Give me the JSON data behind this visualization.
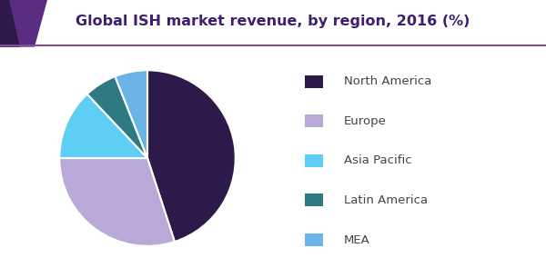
{
  "title": "Global ISH market revenue, by region, 2016 (%)",
  "labels": [
    "North America",
    "Europe",
    "Asia Pacific",
    "Latin America",
    "MEA"
  ],
  "values": [
    45,
    30,
    13,
    6,
    6
  ],
  "colors": [
    "#2d1a4b",
    "#b8a9d9",
    "#5ecef5",
    "#2e7a82",
    "#6ab4e8"
  ],
  "startangle": 90,
  "title_fontsize": 11.5,
  "legend_fontsize": 9.5,
  "title_color": "#3d1f6e",
  "header_bg": "#ffffff",
  "header_triangle_color": "#5a2d82",
  "header_triangle_dark": "#2d1a4b",
  "header_line_color": "#7b4f96",
  "background_color": "#ffffff",
  "pie_edge_color": "#ffffff",
  "pie_edge_width": 1.5
}
